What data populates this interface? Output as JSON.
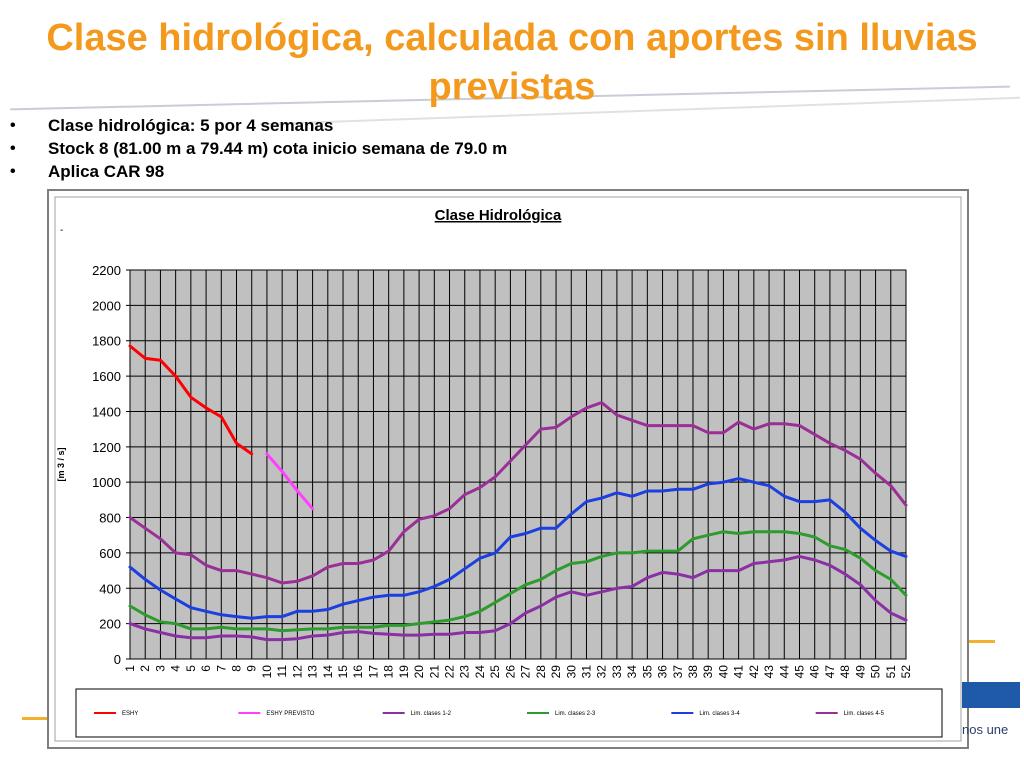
{
  "slide": {
    "title": "Clase hidrológica, calculada con aportes sin lluvias previstas",
    "bullets": [
      "Clase hidrológica:  5 por 4 semanas",
      "Stock 8 (81.00 m a 79.44 m) cota inicio semana de 79.0 m",
      "Aplica CAR 98"
    ],
    "logo_text": "nos une"
  },
  "chart_data": {
    "type": "line",
    "title": "Clase Hidrológica",
    "ylabel": "[m 3 / s]",
    "xlabel": "",
    "ylim": [
      0,
      2200
    ],
    "yticks": [
      0,
      200,
      400,
      600,
      800,
      1000,
      1200,
      1400,
      1600,
      1800,
      2000,
      2200
    ],
    "categories": [
      "1",
      "2",
      "3",
      "4",
      "5",
      "6",
      "7",
      "8",
      "9",
      "10",
      "11",
      "12",
      "13",
      "14",
      "15",
      "16",
      "17",
      "18",
      "19",
      "20",
      "21",
      "22",
      "23",
      "24",
      "25",
      "26",
      "27",
      "28",
      "29",
      "30",
      "31",
      "32",
      "33",
      "34",
      "35",
      "36",
      "37",
      "38",
      "39",
      "40",
      "41",
      "42",
      "43",
      "44",
      "45",
      "46",
      "47",
      "48",
      "49",
      "50",
      "51",
      "52"
    ],
    "grid": true,
    "legend_position": "bottom",
    "plot_background": "#c0c0c0",
    "series": [
      {
        "name": "ESHY",
        "color": "#ff0000",
        "values": [
          1770,
          1700,
          1690,
          1600,
          1480,
          1420,
          1370,
          1220,
          1160,
          null,
          null,
          null,
          null,
          null,
          null,
          null,
          null,
          null,
          null,
          null,
          null,
          null,
          null,
          null,
          null,
          null,
          null,
          null,
          null,
          null,
          null,
          null,
          null,
          null,
          null,
          null,
          null,
          null,
          null,
          null,
          null,
          null,
          null,
          null,
          null,
          null,
          null,
          null,
          null,
          null,
          null,
          null
        ]
      },
      {
        "name": "ESHY PREVISTO",
        "color": "#ff40ff",
        "values": [
          null,
          null,
          null,
          null,
          null,
          null,
          null,
          null,
          null,
          1160,
          1060,
          950,
          850,
          null,
          null,
          null,
          null,
          null,
          null,
          null,
          null,
          null,
          null,
          null,
          null,
          null,
          null,
          null,
          null,
          null,
          null,
          null,
          null,
          null,
          null,
          null,
          null,
          null,
          null,
          null,
          null,
          null,
          null,
          null,
          null,
          null,
          null,
          null,
          null,
          null,
          null,
          null
        ]
      },
      {
        "name": "Lim. clases 1-2",
        "color": "#8b2fa5",
        "values": [
          200,
          170,
          150,
          130,
          120,
          120,
          130,
          130,
          125,
          110,
          110,
          115,
          130,
          135,
          150,
          155,
          145,
          140,
          135,
          135,
          140,
          140,
          150,
          150,
          160,
          200,
          260,
          300,
          350,
          380,
          360,
          380,
          400,
          410,
          460,
          490,
          480,
          460,
          500,
          500,
          500,
          540,
          550,
          560,
          580,
          560,
          530,
          480,
          420,
          330,
          260,
          220
        ]
      },
      {
        "name": "Lim. clases 2-3",
        "color": "#2e9b2e",
        "values": [
          300,
          250,
          210,
          200,
          170,
          170,
          180,
          170,
          170,
          170,
          160,
          165,
          170,
          170,
          180,
          180,
          180,
          190,
          190,
          200,
          210,
          220,
          240,
          270,
          320,
          370,
          420,
          450,
          500,
          540,
          550,
          580,
          600,
          600,
          610,
          610,
          610,
          680,
          700,
          720,
          710,
          720,
          720,
          720,
          710,
          690,
          640,
          620,
          570,
          500,
          450,
          360
        ]
      },
      {
        "name": "Lim. clases 3-4",
        "color": "#1c3fe0",
        "values": [
          520,
          450,
          390,
          340,
          290,
          270,
          250,
          240,
          230,
          240,
          240,
          270,
          270,
          280,
          310,
          330,
          350,
          360,
          360,
          380,
          410,
          450,
          510,
          570,
          600,
          690,
          710,
          740,
          740,
          820,
          890,
          910,
          940,
          920,
          950,
          950,
          960,
          960,
          990,
          1000,
          1020,
          1000,
          980,
          920,
          890,
          890,
          900,
          830,
          740,
          670,
          610,
          580
        ]
      },
      {
        "name": "Lim. clases 4-5",
        "color": "#9a2f96",
        "values": [
          800,
          740,
          680,
          600,
          590,
          530,
          500,
          500,
          480,
          460,
          430,
          440,
          470,
          520,
          540,
          540,
          560,
          610,
          720,
          790,
          810,
          850,
          930,
          970,
          1030,
          1120,
          1210,
          1300,
          1310,
          1370,
          1420,
          1450,
          1380,
          1350,
          1320,
          1320,
          1320,
          1320,
          1280,
          1280,
          1340,
          1300,
          1330,
          1330,
          1320,
          1270,
          1220,
          1180,
          1130,
          1050,
          980,
          870
        ]
      }
    ]
  }
}
